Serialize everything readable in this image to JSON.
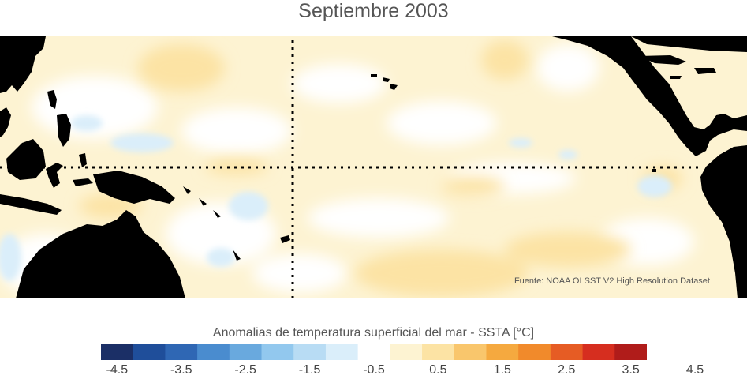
{
  "title": "Septiembre 2003",
  "source": "Fuente: NOAA OI SST V2 High Resolution Dataset",
  "colorbar": {
    "label": "Anomalias de temperatura superficial del mar - SSTA  [°C]",
    "colors": [
      "#1b2f66",
      "#1f4e9a",
      "#2f67b4",
      "#4a8ccf",
      "#69a9de",
      "#92c8ee",
      "#b8dcf4",
      "#daeefa",
      "#ffffff",
      "#fdf3d2",
      "#fce3a4",
      "#f9c66c",
      "#f5a93f",
      "#f18a2b",
      "#e65c24",
      "#d62e1f",
      "#b01c1a"
    ],
    "tick_labels": [
      "-4.5",
      "-3.5",
      "-2.5",
      "-1.5",
      "-0.5",
      "0.5",
      "1.5",
      "2.5",
      "3.5",
      "4.5"
    ]
  },
  "map": {
    "land_color": "#000000",
    "ocean_neutral": "#ffffff",
    "warm_anomaly_color": "#fce3a4",
    "light_warm_color": "#fdf3d2",
    "cool_anomaly_color": "#daeefa",
    "reference_lines": [
      "equator",
      "date-line"
    ]
  }
}
